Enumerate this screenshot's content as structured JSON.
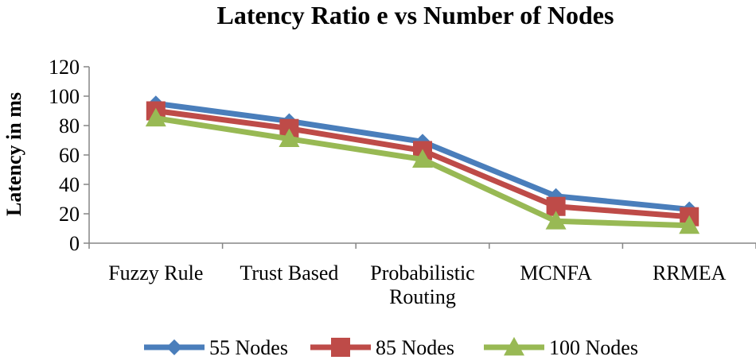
{
  "chart_data": {
    "type": "line",
    "title": "Latency Ratio e vs Number of Nodes",
    "xlabel": "",
    "ylabel": "Latency in  ms",
    "ylim": [
      0,
      120
    ],
    "yticks": [
      0,
      20,
      40,
      60,
      80,
      100,
      120
    ],
    "categories": [
      [
        "Fuzzy Rule"
      ],
      [
        "Trust Based"
      ],
      [
        "Probabilistic",
        "Routing"
      ],
      [
        "MCNFA"
      ],
      [
        "RRMEA"
      ]
    ],
    "grid": false,
    "legend_position": "bottom",
    "series": [
      {
        "name": "55 Nodes",
        "values": [
          95,
          83,
          69,
          32,
          23
        ],
        "color": "#4a7ebb",
        "marker": "diamond"
      },
      {
        "name": "85 Nodes",
        "values": [
          90,
          78,
          63,
          25,
          18
        ],
        "color": "#be4b48",
        "marker": "square"
      },
      {
        "name": "100 Nodes",
        "values": [
          85,
          71,
          57,
          15,
          12
        ],
        "color": "#98b954",
        "marker": "triangle"
      }
    ]
  }
}
